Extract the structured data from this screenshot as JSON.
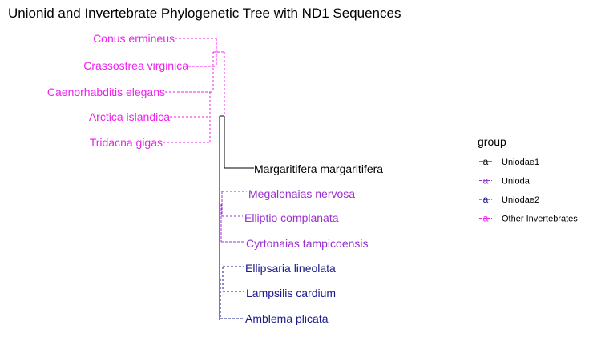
{
  "title": "Unionid and Invertebrate Phylogenetic Tree with ND1 Sequences",
  "colors": {
    "Uniodae1": "#000000",
    "Unioda": "#9b30d0",
    "Uniodae2": "#1a1a8c",
    "Other Invertebrates": "#ee22ee"
  },
  "tips": [
    {
      "label": "Conus ermineus",
      "group": "Other Invertebrates"
    },
    {
      "label": "Crassostrea virginica",
      "group": "Other Invertebrates"
    },
    {
      "label": "Caenorhabditis elegans",
      "group": "Other Invertebrates"
    },
    {
      "label": "Arctica islandica",
      "group": "Other Invertebrates"
    },
    {
      "label": "Tridacna gigas",
      "group": "Other Invertebrates"
    },
    {
      "label": "Margaritifera margaritifera",
      "group": "Uniodae1"
    },
    {
      "label": "Megalonaias nervosa",
      "group": "Unioda"
    },
    {
      "label": "Elliptio complanata",
      "group": "Unioda"
    },
    {
      "label": "Cyrtonaias tampicoensis",
      "group": "Unioda"
    },
    {
      "label": "Ellipsaria lineolata",
      "group": "Uniodae2"
    },
    {
      "label": "Lampsilis cardium",
      "group": "Uniodae2"
    },
    {
      "label": "Amblema plicata",
      "group": "Uniodae2"
    }
  ],
  "legend": {
    "title": "group",
    "key_glyph": "a",
    "entries": [
      {
        "label": "Uniodae1",
        "group": "Uniodae1"
      },
      {
        "label": "Unioda",
        "group": "Unioda"
      },
      {
        "label": "Uniodae2",
        "group": "Uniodae2"
      },
      {
        "label": "Other Invertebrates",
        "group": "Other Invertebrates"
      }
    ]
  }
}
